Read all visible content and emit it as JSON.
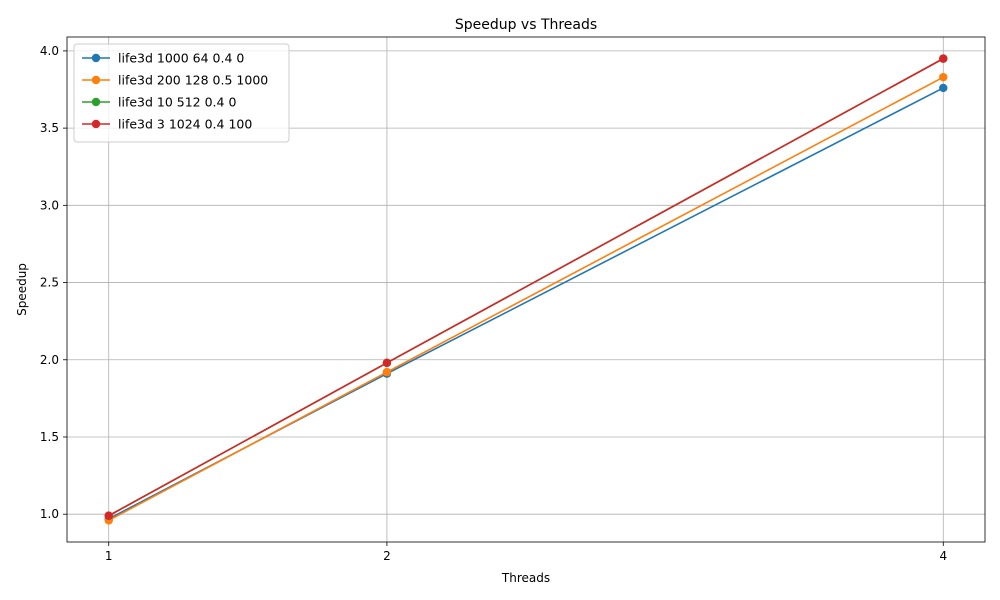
{
  "chart_data": {
    "type": "line",
    "title": "Speedup vs Threads",
    "xlabel": "Threads",
    "ylabel": "Speedup",
    "x": [
      1,
      2,
      4
    ],
    "x_tick_labels": [
      "1",
      "2",
      "4"
    ],
    "y_ticks": [
      1.0,
      1.5,
      2.0,
      2.5,
      3.0,
      3.5,
      4.0
    ],
    "y_tick_labels": [
      "1.0",
      "1.5",
      "2.0",
      "2.5",
      "3.0",
      "3.5",
      "4.0"
    ],
    "xlim": [
      0.85,
      4.15
    ],
    "ylim": [
      0.82,
      4.09
    ],
    "grid": true,
    "legend_position": "top-left",
    "series": [
      {
        "name": "life3d 1000 64 0.4 0",
        "color": "#1f77b4",
        "values": [
          0.97,
          1.91,
          3.76
        ]
      },
      {
        "name": "life3d 200 128 0.5 1000",
        "color": "#ff7f0e",
        "values": [
          0.96,
          1.92,
          3.83
        ]
      },
      {
        "name": "life3d 10 512 0.4 0",
        "color": "#2ca02c",
        "values": [
          0.99,
          1.98,
          3.95
        ]
      },
      {
        "name": "life3d 3 1024 0.4 100",
        "color": "#d62728",
        "values": [
          0.99,
          1.98,
          3.95
        ]
      }
    ]
  }
}
